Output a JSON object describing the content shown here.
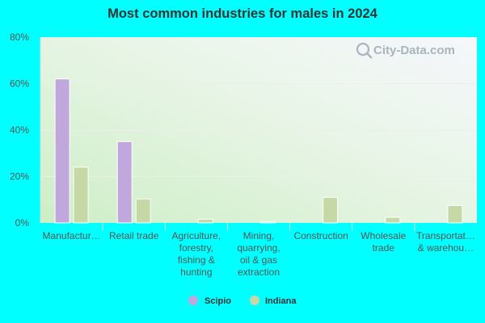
{
  "chart_data": {
    "type": "bar",
    "title": "Most common industries for males in 2024",
    "categories": [
      "Manufactur…",
      "Retail trade",
      "Agriculture, forestry, fishing & hunting",
      "Mining, quarrying, oil & gas extraction",
      "Construction",
      "Wholesale trade",
      "Transportat… & warehou…"
    ],
    "category_lines": [
      [
        "Manufactur…"
      ],
      [
        "Retail trade"
      ],
      [
        "Agriculture,",
        "forestry,",
        "fishing &",
        "hunting"
      ],
      [
        "Mining,",
        "quarrying,",
        "oil & gas",
        "extraction"
      ],
      [
        "Construction"
      ],
      [
        "Wholesale",
        "trade"
      ],
      [
        "Transportat…",
        "& warehou…"
      ]
    ],
    "series": [
      {
        "name": "Scipio",
        "color": "#c0a8dc",
        "values": [
          62,
          35,
          0,
          0,
          0,
          0,
          0
        ]
      },
      {
        "name": "Indiana",
        "color": "#c6d8a6",
        "values": [
          24,
          10.3,
          1.6,
          0.5,
          11,
          2.4,
          7.5
        ]
      }
    ],
    "ylim": [
      0,
      80
    ],
    "yticks": [
      0,
      20,
      40,
      60,
      80
    ],
    "ytick_labels": [
      "0%",
      "20%",
      "40%",
      "60%",
      "80%"
    ],
    "legend_position": "bottom",
    "grid": true
  },
  "watermark": {
    "text": "City-Data.com",
    "icon": "magnifier-icon"
  }
}
